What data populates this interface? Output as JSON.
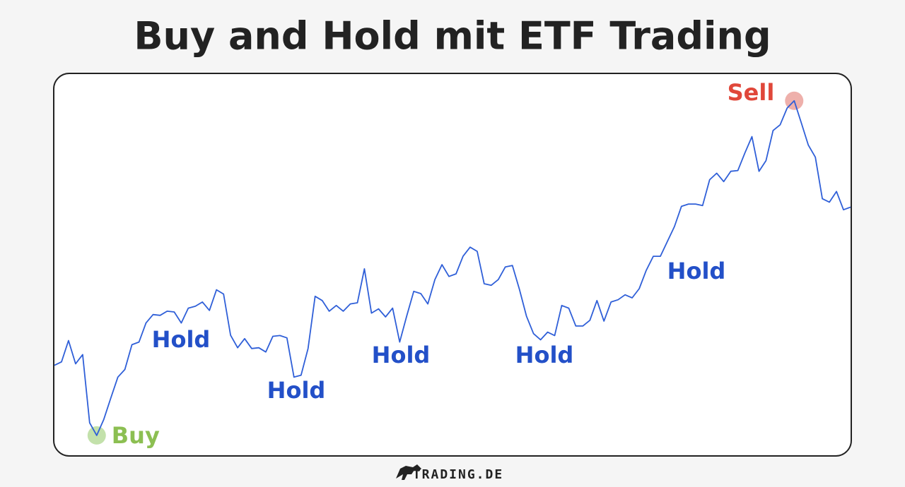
{
  "chart_data": {
    "type": "line",
    "title": "Buy and Hold mit ETF Trading",
    "color": "#2f5fd8",
    "ylim": [
      0,
      100
    ],
    "values": [
      23.6,
      24.5,
      30.1,
      24.0,
      26.4,
      8.5,
      5.2,
      9.4,
      15.0,
      20.5,
      22.5,
      29.0,
      29.7,
      34.7,
      36.9,
      36.7,
      37.8,
      37.6,
      34.7,
      38.6,
      39.1,
      40.2,
      38.0,
      43.4,
      42.3,
      31.5,
      28.2,
      30.6,
      28.0,
      28.2,
      27.1,
      31.2,
      31.4,
      30.8,
      20.5,
      21.0,
      28.0,
      41.7,
      40.6,
      37.8,
      39.3,
      37.8,
      39.7,
      40.0,
      48.9,
      37.3,
      38.4,
      36.3,
      38.6,
      29.7,
      36.5,
      43.0,
      42.4,
      39.7,
      46.1,
      50.0,
      46.9,
      47.6,
      52.2,
      54.6,
      53.5,
      45.0,
      44.6,
      46.1,
      49.4,
      49.8,
      43.5,
      36.5,
      31.9,
      30.3,
      32.3,
      31.4,
      39.3,
      38.6,
      33.9,
      33.9,
      35.4,
      40.6,
      35.2,
      40.2,
      40.8,
      42.1,
      41.3,
      43.7,
      48.5,
      52.2,
      52.2,
      56.1,
      60.0,
      65.3,
      65.9,
      65.9,
      65.5,
      72.3,
      74.0,
      71.8,
      74.5,
      74.7,
      79.3,
      83.6,
      74.5,
      77.3,
      85.2,
      86.7,
      91.1,
      93.0,
      87.3,
      81.4,
      78.2,
      67.3,
      66.4,
      69.2,
      64.4,
      65.1
    ],
    "annotations": {
      "buy": {
        "text": "Buy",
        "index": 6,
        "color": "#8cbf52"
      },
      "sell": {
        "text": "Sell",
        "index": 105,
        "color": "#e0473a"
      },
      "hold": {
        "texts": [
          "Hold",
          "Hold",
          "Hold",
          "Hold",
          "Hold"
        ],
        "color": "#2350c8"
      }
    }
  },
  "footer": {
    "logo": "TRADING.DE"
  }
}
